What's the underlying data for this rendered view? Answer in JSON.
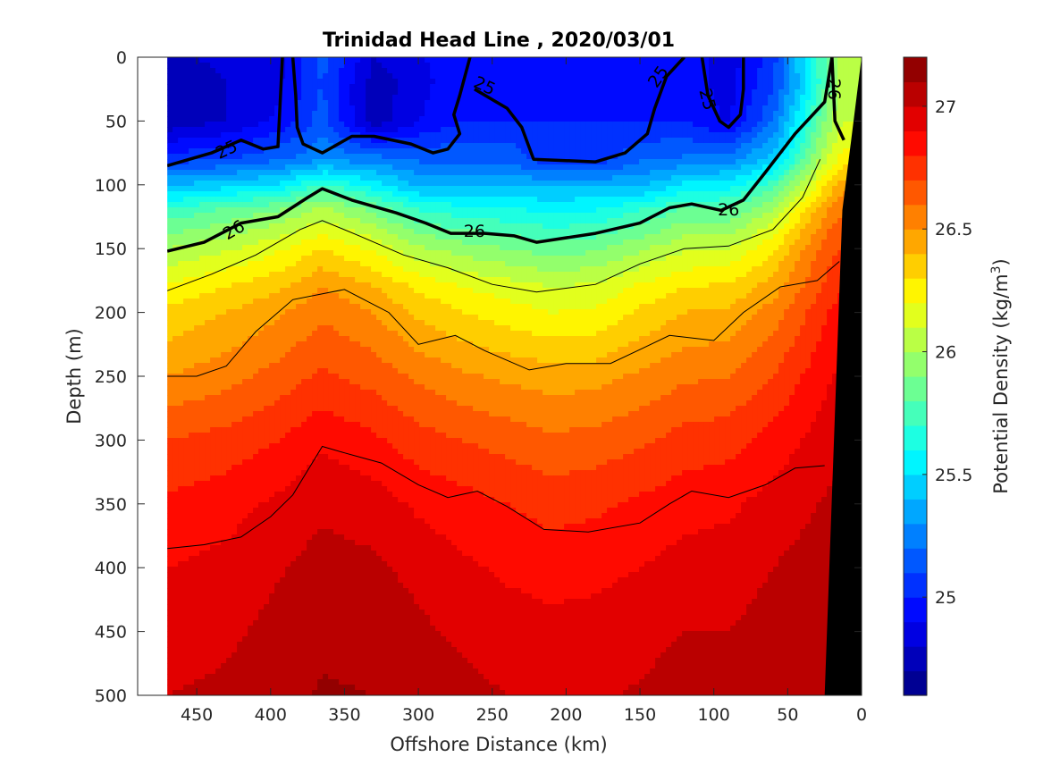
{
  "chart_data": {
    "type": "heatmap",
    "subtype": "filled-contour-section",
    "title": "Trinidad Head Line , 2020/03/01",
    "xlabel": "Offshore Distance (km)",
    "ylabel": "Depth (m)",
    "xlim": [
      490,
      0
    ],
    "ylim": [
      500,
      0
    ],
    "x_reversed": true,
    "y_reversed": true,
    "x_ticks": [
      450,
      400,
      350,
      300,
      250,
      200,
      150,
      100,
      50,
      0
    ],
    "y_ticks": [
      0,
      50,
      100,
      150,
      200,
      250,
      300,
      350,
      400,
      450,
      500
    ],
    "data_x_range": [
      470,
      0
    ],
    "colorbar": {
      "label": "Potential Density (kg/m",
      "label_superscript": "3",
      "label_suffix": ")",
      "range": [
        24.6,
        27.2
      ],
      "ticks": [
        25,
        25.5,
        26,
        26.5,
        27
      ],
      "tick_labels": [
        "25",
        "25.5",
        "26",
        "26.5",
        "27"
      ],
      "levels": 26
    },
    "fields": {
      "x": [
        470,
        430,
        395,
        365,
        330,
        300,
        270,
        240,
        210,
        180,
        150,
        120,
        90,
        60,
        40,
        20,
        12
      ],
      "depths": [
        0,
        20,
        50,
        80,
        100,
        120,
        150,
        180,
        200,
        250,
        300,
        350,
        400,
        450,
        500
      ],
      "values": [
        [
          24.78,
          24.82,
          24.86,
          25.15,
          24.8,
          24.88,
          25.0,
          24.95,
          24.95,
          24.95,
          24.95,
          24.96,
          24.85,
          25.05,
          25.5,
          25.9,
          26.05
        ],
        [
          24.75,
          24.8,
          24.88,
          25.1,
          24.75,
          24.85,
          25.0,
          24.98,
          24.98,
          24.98,
          24.98,
          24.95,
          24.86,
          25.08,
          25.45,
          25.9,
          26.05
        ],
        [
          24.72,
          24.8,
          24.92,
          25.15,
          24.72,
          24.9,
          25.0,
          25.0,
          25.0,
          25.0,
          25.0,
          25.0,
          24.88,
          25.2,
          25.6,
          26.0,
          26.1
        ],
        [
          25.05,
          25.1,
          25.18,
          25.28,
          25.25,
          25.18,
          25.18,
          25.18,
          25.02,
          25.02,
          25.18,
          25.22,
          25.25,
          25.45,
          25.78,
          26.15,
          26.25
        ],
        [
          25.4,
          25.45,
          25.52,
          25.72,
          25.55,
          25.38,
          25.38,
          25.38,
          25.38,
          25.38,
          25.38,
          25.52,
          25.55,
          25.75,
          26.05,
          26.35,
          26.45
        ],
        [
          25.72,
          25.82,
          25.9,
          26.03,
          25.88,
          25.7,
          25.65,
          25.62,
          25.58,
          25.6,
          25.7,
          25.82,
          25.82,
          26.0,
          26.28,
          26.55,
          26.6
        ],
        [
          26.0,
          26.08,
          26.18,
          26.3,
          26.18,
          26.02,
          25.95,
          25.9,
          25.85,
          25.88,
          25.98,
          26.08,
          26.1,
          26.28,
          26.5,
          26.68,
          26.7
        ],
        [
          26.22,
          26.3,
          26.38,
          26.5,
          26.4,
          26.28,
          26.2,
          26.15,
          26.1,
          26.12,
          26.22,
          26.3,
          26.32,
          26.45,
          26.6,
          26.75,
          26.8
        ],
        [
          26.32,
          26.4,
          26.48,
          26.58,
          26.5,
          26.38,
          26.3,
          26.25,
          26.2,
          26.22,
          26.32,
          26.4,
          26.42,
          26.55,
          26.68,
          26.82,
          26.85
        ],
        [
          26.5,
          26.56,
          26.64,
          26.72,
          26.66,
          26.58,
          26.52,
          26.48,
          26.45,
          26.46,
          26.52,
          26.58,
          26.6,
          26.7,
          26.8,
          26.9,
          26.92
        ],
        [
          26.7,
          26.74,
          26.8,
          26.88,
          26.82,
          26.74,
          26.7,
          26.66,
          26.62,
          26.64,
          26.68,
          26.74,
          26.76,
          26.84,
          26.9,
          26.96,
          26.98
        ],
        [
          26.82,
          26.86,
          26.92,
          26.98,
          26.95,
          26.88,
          26.84,
          26.8,
          26.76,
          26.78,
          26.82,
          26.86,
          26.88,
          26.94,
          26.98,
          27.02,
          27.02
        ],
        [
          26.9,
          26.93,
          26.99,
          27.04,
          27.02,
          26.97,
          26.92,
          26.88,
          26.86,
          26.87,
          26.9,
          26.94,
          26.95,
          27.0,
          27.03,
          27.05,
          27.05
        ],
        [
          26.95,
          26.98,
          27.03,
          27.08,
          27.07,
          27.02,
          26.98,
          26.95,
          26.93,
          26.94,
          26.97,
          27.0,
          27.0,
          27.04,
          27.06,
          27.08,
          27.08
        ],
        [
          27.0,
          27.02,
          27.06,
          27.11,
          27.1,
          27.06,
          27.03,
          27.0,
          26.98,
          26.99,
          27.01,
          27.04,
          27.04,
          27.07,
          27.09,
          27.1,
          27.1
        ]
      ]
    },
    "contour_lines": [
      {
        "level": 25,
        "label": "25",
        "bold": true,
        "points": [
          [
            470,
            85
          ],
          [
            440,
            75
          ],
          [
            420,
            65
          ],
          [
            405,
            72
          ],
          [
            395,
            70
          ],
          [
            392,
            0
          ]
        ]
      },
      {
        "level": 25,
        "label": "25",
        "bold": true,
        "points": [
          [
            385,
            0
          ],
          [
            383,
            30
          ],
          [
            382,
            55
          ],
          [
            378,
            68
          ],
          [
            365,
            75
          ],
          [
            345,
            62
          ],
          [
            330,
            62
          ],
          [
            305,
            68
          ],
          [
            290,
            75
          ],
          [
            280,
            72
          ],
          [
            272,
            60
          ],
          [
            276,
            45
          ],
          [
            272,
            30
          ],
          [
            265,
            0
          ]
        ]
      },
      {
        "level": 25,
        "label": "25",
        "bold": true,
        "points": [
          [
            262,
            25
          ],
          [
            240,
            40
          ],
          [
            230,
            55
          ],
          [
            222,
            80
          ],
          [
            180,
            82
          ],
          [
            160,
            75
          ],
          [
            145,
            60
          ],
          [
            140,
            40
          ],
          [
            132,
            15
          ],
          [
            120,
            0
          ]
        ]
      },
      {
        "level": 25,
        "label": "25",
        "bold": true,
        "points": [
          [
            108,
            0
          ],
          [
            104,
            30
          ],
          [
            96,
            50
          ],
          [
            90,
            55
          ],
          [
            82,
            45
          ],
          [
            80,
            25
          ],
          [
            80,
            0
          ]
        ]
      },
      {
        "level": 26,
        "label": "26",
        "bold": true,
        "points": [
          [
            470,
            152
          ],
          [
            445,
            145
          ],
          [
            420,
            130
          ],
          [
            395,
            125
          ],
          [
            375,
            110
          ],
          [
            365,
            103
          ],
          [
            345,
            112
          ],
          [
            315,
            122
          ],
          [
            295,
            130
          ],
          [
            278,
            138
          ],
          [
            255,
            138
          ],
          [
            235,
            140
          ],
          [
            220,
            145
          ],
          [
            180,
            138
          ],
          [
            150,
            130
          ],
          [
            130,
            118
          ],
          [
            115,
            115
          ],
          [
            95,
            120
          ],
          [
            80,
            112
          ],
          [
            65,
            90
          ],
          [
            45,
            60
          ],
          [
            25,
            35
          ],
          [
            20,
            0
          ]
        ]
      },
      {
        "level": 26,
        "label": "26",
        "bold": true,
        "points": [
          [
            20,
            0
          ],
          [
            18,
            50
          ],
          [
            12,
            65
          ]
        ]
      }
    ],
    "contour_label_positions": [
      {
        "label": "25",
        "x": 430,
        "y": 72,
        "angle": -25
      },
      {
        "label": "25",
        "x": 255,
        "y": 22,
        "angle": 25
      },
      {
        "label": "25",
        "x": 138,
        "y": 15,
        "angle": -55
      },
      {
        "label": "25",
        "x": 104,
        "y": 33,
        "angle": 75
      },
      {
        "label": "26",
        "x": 425,
        "y": 135,
        "angle": -30
      },
      {
        "label": "26",
        "x": 262,
        "y": 136,
        "angle": 0
      },
      {
        "label": "26",
        "x": 90,
        "y": 119,
        "angle": 0
      },
      {
        "label": "26",
        "x": 18,
        "y": 25,
        "angle": 90
      }
    ],
    "thin_contour_lines": [
      {
        "points": [
          [
            470,
            183
          ],
          [
            440,
            170
          ],
          [
            410,
            155
          ],
          [
            380,
            135
          ],
          [
            365,
            128
          ],
          [
            340,
            140
          ],
          [
            310,
            155
          ],
          [
            280,
            165
          ],
          [
            250,
            178
          ],
          [
            220,
            184
          ],
          [
            180,
            178
          ],
          [
            150,
            162
          ],
          [
            120,
            150
          ],
          [
            90,
            148
          ],
          [
            60,
            135
          ],
          [
            40,
            110
          ],
          [
            28,
            80
          ]
        ]
      },
      {
        "points": [
          [
            470,
            250
          ],
          [
            450,
            250
          ],
          [
            430,
            242
          ],
          [
            410,
            215
          ],
          [
            385,
            190
          ],
          [
            350,
            182
          ],
          [
            320,
            200
          ],
          [
            300,
            225
          ],
          [
            275,
            218
          ],
          [
            255,
            230
          ],
          [
            225,
            245
          ],
          [
            200,
            240
          ],
          [
            170,
            240
          ],
          [
            148,
            228
          ],
          [
            130,
            218
          ],
          [
            100,
            222
          ],
          [
            80,
            200
          ],
          [
            55,
            180
          ],
          [
            30,
            175
          ],
          [
            15,
            160
          ]
        ]
      },
      {
        "points": [
          [
            470,
            385
          ],
          [
            445,
            382
          ],
          [
            420,
            376
          ],
          [
            400,
            360
          ],
          [
            385,
            343
          ],
          [
            365,
            305
          ],
          [
            350,
            310
          ],
          [
            325,
            318
          ],
          [
            300,
            335
          ],
          [
            280,
            345
          ],
          [
            260,
            340
          ],
          [
            240,
            352
          ],
          [
            215,
            370
          ],
          [
            185,
            372
          ],
          [
            150,
            365
          ],
          [
            130,
            350
          ],
          [
            115,
            340
          ],
          [
            90,
            345
          ],
          [
            65,
            335
          ],
          [
            45,
            322
          ],
          [
            25,
            320
          ]
        ]
      }
    ],
    "topography": {
      "label": "seafloor",
      "color": "#000000",
      "polygon": [
        [
          25,
          500
        ],
        [
          0,
          500
        ],
        [
          0,
          0
        ],
        [
          13,
          120
        ]
      ]
    },
    "masked_regions": [
      {
        "points": [
          [
            490,
            0
          ],
          [
            470,
            0
          ],
          [
            470,
            500
          ],
          [
            490,
            500
          ]
        ]
      }
    ]
  }
}
